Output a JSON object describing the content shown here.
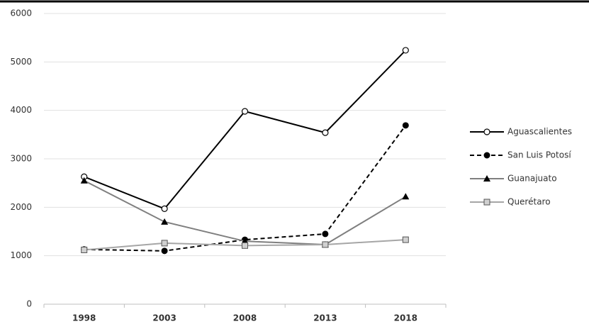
{
  "chart_data": {
    "type": "line",
    "categories": [
      "1998",
      "2003",
      "2008",
      "2013",
      "2018"
    ],
    "series": [
      {
        "name": "Aguascalientes",
        "color": "#000000",
        "dash": false,
        "marker": "open-circle",
        "values": [
          2630,
          1970,
          3980,
          3540,
          5240
        ]
      },
      {
        "name": "San Luis Potosí",
        "color": "#000000",
        "dash": true,
        "marker": "filled-circle",
        "values": [
          1130,
          1100,
          1330,
          1450,
          3690
        ]
      },
      {
        "name": "Guanajuato",
        "color": "#7f7f7f",
        "dash": false,
        "marker": "triangle",
        "values": [
          2550,
          1700,
          1300,
          1230,
          2220
        ]
      },
      {
        "name": "Querétaro",
        "color": "#a6a6a6",
        "dash": false,
        "marker": "square",
        "values": [
          1120,
          1260,
          1210,
          1230,
          1330
        ]
      }
    ],
    "ylim": [
      0,
      6000
    ],
    "yticks": [
      0,
      1000,
      2000,
      3000,
      4000,
      5000,
      6000
    ],
    "grid": true,
    "legend": "right"
  }
}
